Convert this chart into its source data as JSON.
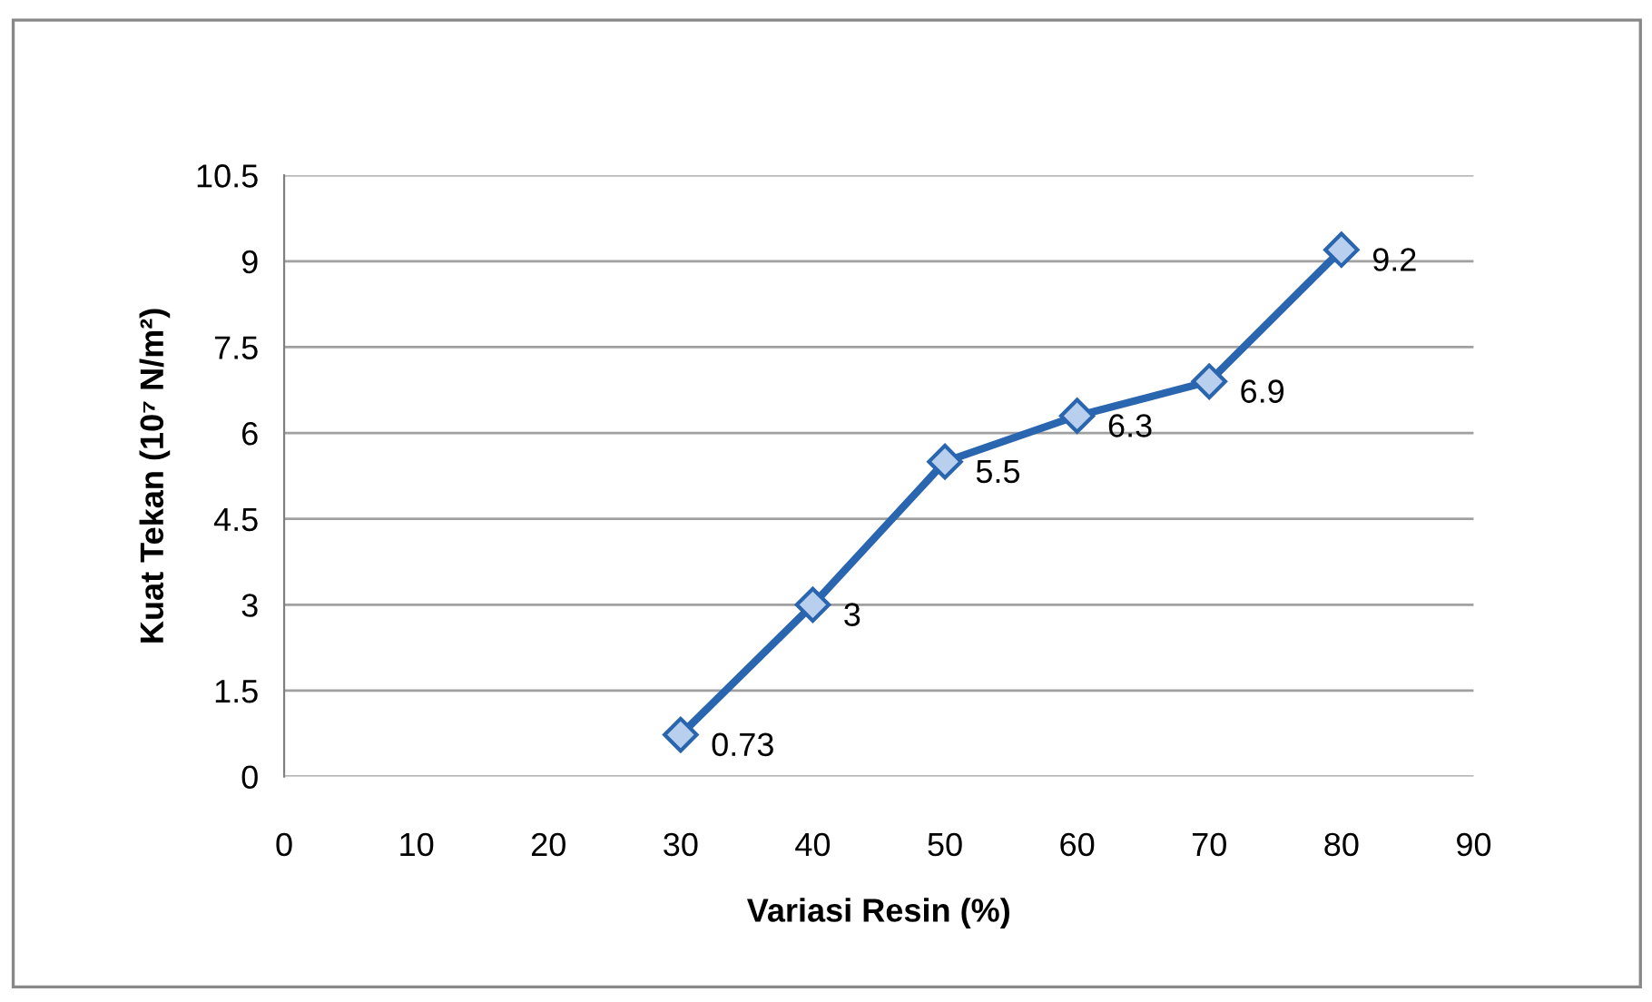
{
  "chart_data": {
    "type": "line",
    "xlabel": "Variasi Resin (%)",
    "ylabel": "Kuat Tekan (10⁷ N/m²)",
    "x": [
      30,
      40,
      50,
      60,
      70,
      80
    ],
    "series": [
      {
        "color": "#2a65b0",
        "values": [
          0.73,
          3,
          5.5,
          6.3,
          6.9,
          9.2
        ]
      }
    ],
    "xlim": [
      0,
      90
    ],
    "xticks": [
      0,
      10,
      20,
      30,
      40,
      50,
      60,
      70,
      80,
      90
    ],
    "ylim": [
      0,
      10.5
    ],
    "yticks": [
      0,
      1.5,
      3,
      4.5,
      6,
      7.5,
      9,
      10.5
    ],
    "grid": "y",
    "marker": "diamond",
    "line_style": "solid",
    "data_labels": true
  }
}
